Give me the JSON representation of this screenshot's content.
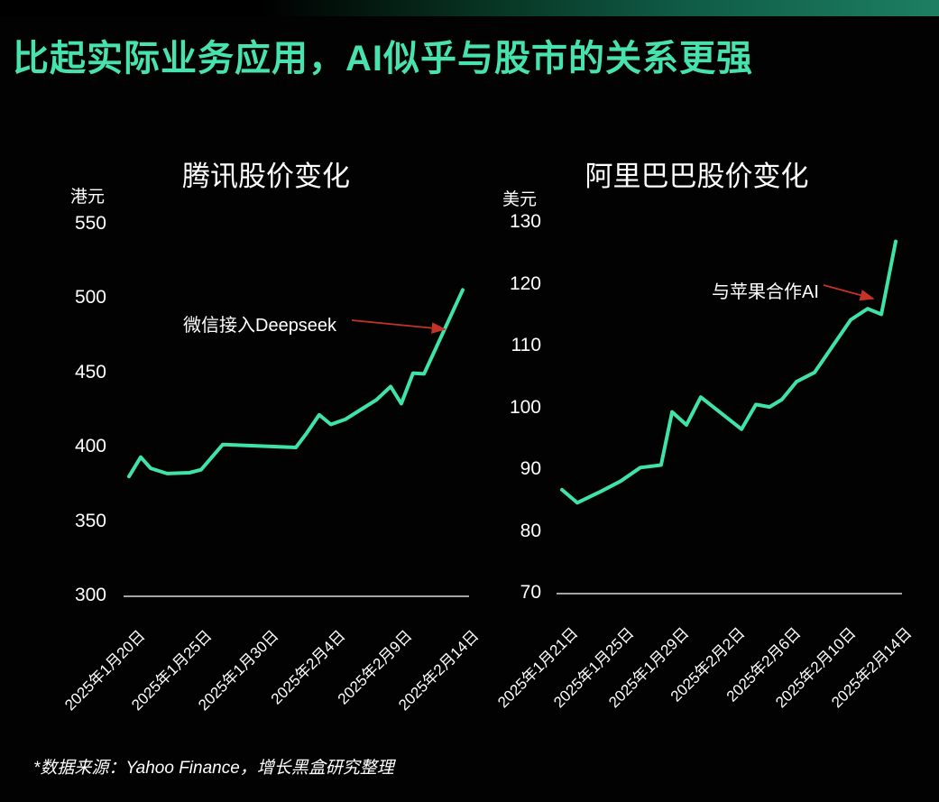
{
  "page": {
    "title": "比起实际业务应用，AI似乎与股市的关系更强",
    "source_note": "*数据来源：Yahoo Finance，增长黑盒研究整理",
    "accent_color": "#47e2ae",
    "background_color": "#020202",
    "arrow_color": "#c53326",
    "axis_color": "#d9d9d9"
  },
  "chart_data": [
    {
      "type": "line",
      "title": "腾讯股价变化",
      "unit": "港元",
      "ylabel": "港元",
      "ylim": [
        300,
        550
      ],
      "y_ticks": [
        550,
        500,
        450,
        400,
        350,
        300
      ],
      "x_tick_labels": [
        "2025年1月20日",
        "2025年1月25日",
        "2025年1月30日",
        "2025年2月4日",
        "2025年2月9日",
        "2025年2月14日"
      ],
      "grid": false,
      "legend": "none",
      "line_color": "#3fe3a7",
      "annotation": {
        "text": "微信接入Deepseek"
      },
      "points": [
        [
          0.0,
          380.0
        ],
        [
          0.035,
          393.0
        ],
        [
          0.065,
          385.5
        ],
        [
          0.114,
          382.0
        ],
        [
          0.181,
          382.5
        ],
        [
          0.216,
          384.5
        ],
        [
          0.281,
          401.5
        ],
        [
          0.5,
          399.5
        ],
        [
          0.532,
          409.0
        ],
        [
          0.57,
          421.5
        ],
        [
          0.605,
          415.0
        ],
        [
          0.649,
          418.5
        ],
        [
          0.695,
          425.0
        ],
        [
          0.741,
          431.5
        ],
        [
          0.784,
          440.5
        ],
        [
          0.816,
          429.0
        ],
        [
          0.851,
          449.5
        ],
        [
          0.884,
          449.0
        ],
        [
          1.0,
          505.5
        ]
      ]
    },
    {
      "type": "line",
      "title": "阿里巴巴股价变化",
      "unit": "美元",
      "ylabel": "美元",
      "ylim": [
        70,
        130
      ],
      "y_ticks": [
        130,
        120,
        110,
        100,
        90,
        80,
        70
      ],
      "x_tick_labels": [
        "2025年1月21日",
        "2025年1月25日",
        "2025年1月29日",
        "2025年2月2日",
        "2025年2月6日",
        "2025年2月10日",
        "2025年2月14日"
      ],
      "grid": false,
      "legend": "none",
      "line_color": "#3fe3a7",
      "annotation": {
        "text": "与苹果合作AI"
      },
      "points": [
        [
          0.0,
          86.8
        ],
        [
          0.046,
          84.7
        ],
        [
          0.119,
          86.6
        ],
        [
          0.176,
          88.2
        ],
        [
          0.235,
          90.4
        ],
        [
          0.297,
          90.8
        ],
        [
          0.33,
          99.4
        ],
        [
          0.373,
          97.3
        ],
        [
          0.416,
          101.8
        ],
        [
          0.538,
          96.6
        ],
        [
          0.581,
          100.6
        ],
        [
          0.622,
          100.2
        ],
        [
          0.659,
          101.4
        ],
        [
          0.703,
          104.3
        ],
        [
          0.757,
          105.8
        ],
        [
          0.865,
          114.3
        ],
        [
          0.916,
          116.1
        ],
        [
          0.957,
          115.2
        ],
        [
          1.0,
          127.0
        ]
      ]
    }
  ]
}
